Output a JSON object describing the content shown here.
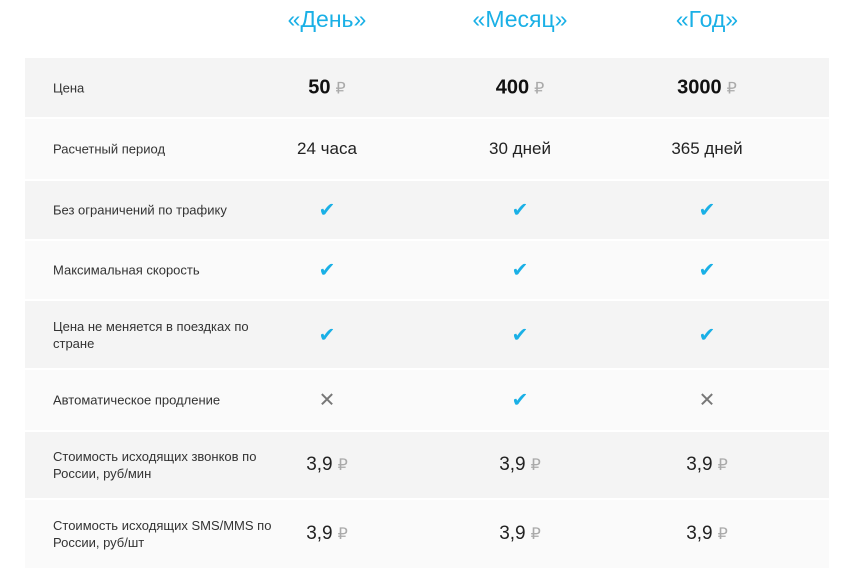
{
  "plans": [
    "«День»",
    "«Месяц»",
    "«Год»"
  ],
  "accent": "#1ab0e6",
  "currency": "₽",
  "rows": [
    {
      "label": "Цена",
      "type": "price",
      "values": [
        "50",
        "400",
        "3000"
      ]
    },
    {
      "label": "Расчетный период",
      "type": "text",
      "values": [
        "24 часа",
        "30 дней",
        "365 дней"
      ]
    },
    {
      "label": "Без ограничений по трафику",
      "type": "bool",
      "values": [
        true,
        true,
        true
      ]
    },
    {
      "label": "Максимальная скорость",
      "type": "bool",
      "values": [
        true,
        true,
        true
      ]
    },
    {
      "label": "Цена не меняется в поездках по стране",
      "type": "bool",
      "values": [
        true,
        true,
        true
      ]
    },
    {
      "label": "Автоматическое продление",
      "type": "bool",
      "values": [
        false,
        true,
        false
      ]
    },
    {
      "label": "Стоимость исходящих звонков по России, руб/мин",
      "type": "cost",
      "values": [
        "3,9",
        "3,9",
        "3,9"
      ]
    },
    {
      "label": "Стоимость исходящих SMS/MMS по России, руб/шт",
      "type": "cost",
      "values": [
        "3,9",
        "3,9",
        "3,9"
      ]
    }
  ]
}
